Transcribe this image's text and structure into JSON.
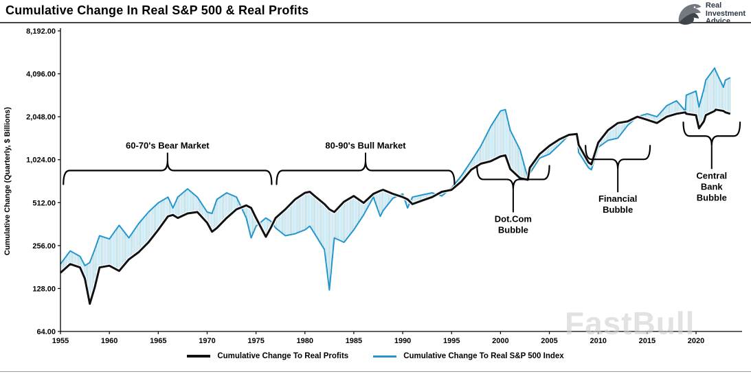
{
  "header": {
    "title": "Cumulative Change In Real S&P 500 & Real Profits",
    "logo": {
      "line1": "Real",
      "line2": "Investment",
      "line3": "Advice"
    }
  },
  "watermark": "FastBull",
  "legend": {
    "profits_label": "Cumulative Change To Real Profits",
    "sp500_label": "Cumulative Change To Real S&P 500 Index"
  },
  "chart_data": {
    "type": "line",
    "title": "Cumulative Change In Real S&P 500 & Real Profits",
    "xlabel": "",
    "ylabel": "Cumulative Change (Quarterly, $ Billions)",
    "y_scale": "log2",
    "grid": false,
    "legend_position": "bottom",
    "y_ticks": [
      64,
      128,
      256,
      512,
      1024,
      2048,
      4096,
      8192
    ],
    "y_tick_labels": [
      "64.00",
      "128.00",
      "256.00",
      "512.00",
      "1,024.00",
      "2,048.00",
      "4,096.00",
      "8,192.00"
    ],
    "x_ticks": [
      1955,
      1960,
      1965,
      1970,
      1975,
      1980,
      1985,
      1990,
      1995,
      2000,
      2005,
      2010,
      2015,
      2020
    ],
    "x_range": [
      1955,
      2023.5
    ],
    "y_range": [
      64,
      8192
    ],
    "colors": {
      "profits": "#111111",
      "sp500": "#2496cc",
      "hatch": "#7cc7e9",
      "annotation": "#000000"
    },
    "x": [
      1955,
      1956,
      1957,
      1957.5,
      1958,
      1958.5,
      1959,
      1960,
      1961,
      1962,
      1963,
      1964,
      1965,
      1966,
      1966.5,
      1967,
      1968,
      1969,
      1970,
      1970.5,
      1971,
      1972,
      1973,
      1974,
      1974.5,
      1975,
      1976,
      1976.5,
      1977,
      1978,
      1979,
      1980,
      1980.5,
      1981,
      1982,
      1982.5,
      1983,
      1984,
      1985,
      1986,
      1987,
      1987.7,
      1988,
      1989,
      1990,
      1990.5,
      1991,
      1992,
      1993,
      1994,
      1995,
      1996,
      1997,
      1998,
      1999,
      2000,
      2000.5,
      2001,
      2002,
      2002.8,
      2003,
      2004,
      2005,
      2006,
      2007,
      2007.8,
      2008,
      2009,
      2009.3,
      2010,
      2011,
      2012,
      2013,
      2014,
      2015,
      2016,
      2017,
      2018,
      2018.9,
      2019,
      2020,
      2020.3,
      2020.8,
      2021,
      2021.9,
      2022,
      2022.8,
      2023,
      2023.5
    ],
    "series": [
      {
        "name": "Cumulative Change To Real Profits",
        "color": "#111111",
        "values": [
          165,
          190,
          180,
          150,
          100,
          130,
          180,
          185,
          170,
          205,
          230,
          270,
          330,
          410,
          420,
          400,
          430,
          440,
          370,
          320,
          340,
          400,
          460,
          490,
          470,
          400,
          295,
          340,
          400,
          460,
          540,
          600,
          610,
          570,
          500,
          460,
          440,
          520,
          570,
          510,
          590,
          620,
          630,
          590,
          560,
          540,
          500,
          530,
          560,
          610,
          630,
          720,
          870,
          960,
          1000,
          1080,
          1100,
          880,
          760,
          740,
          900,
          1120,
          1280,
          1420,
          1530,
          1550,
          1300,
          980,
          950,
          1350,
          1650,
          1850,
          1900,
          2050,
          1950,
          1850,
          2050,
          2150,
          2200,
          2150,
          2100,
          1700,
          1900,
          2100,
          2250,
          2300,
          2250,
          2200,
          2150
        ]
      },
      {
        "name": "Cumulative Change To Real S&P 500 Index",
        "color": "#2496cc",
        "values": [
          190,
          235,
          215,
          185,
          195,
          240,
          300,
          285,
          355,
          290,
          365,
          440,
          510,
          560,
          470,
          560,
          640,
          560,
          440,
          430,
          540,
          600,
          560,
          400,
          290,
          350,
          400,
          380,
          340,
          300,
          310,
          330,
          350,
          310,
          240,
          125,
          290,
          270,
          330,
          420,
          560,
          410,
          450,
          550,
          590,
          470,
          560,
          580,
          600,
          570,
          650,
          790,
          1000,
          1280,
          1750,
          2250,
          2300,
          1650,
          1200,
          760,
          820,
          1050,
          1120,
          1300,
          1520,
          1550,
          1150,
          900,
          870,
          1250,
          1400,
          1450,
          1780,
          2050,
          2150,
          2050,
          2450,
          2650,
          2250,
          2900,
          3100,
          2400,
          3200,
          3700,
          4500,
          4300,
          3300,
          3700,
          3850
        ]
      }
    ],
    "annotations": [
      {
        "id": "bear-market",
        "lines": [
          "60-70's Bear Market"
        ],
        "x1": 1955.3,
        "x2": 1976.6,
        "value": 860,
        "direction": "up"
      },
      {
        "id": "bull-market",
        "lines": [
          "80-90's Bull Market"
        ],
        "x1": 1977.1,
        "x2": 1995.3,
        "value": 860,
        "direction": "up"
      },
      {
        "id": "dotcom-bubble",
        "lines": [
          "Dot.Com",
          "Bubble"
        ],
        "x1": 1997.6,
        "x2": 2005.0,
        "value": 745,
        "direction": "down"
      },
      {
        "id": "financial-bubble",
        "lines": [
          "Financial",
          "Bubble"
        ],
        "x1": 2008.7,
        "x2": 2015.3,
        "value": 1030,
        "direction": "down"
      },
      {
        "id": "central-bank-bubble",
        "lines": [
          "Central",
          "Bank",
          "Bubble"
        ],
        "x1": 2018.7,
        "x2": 2024.5,
        "value": 1500,
        "direction": "down"
      }
    ]
  }
}
